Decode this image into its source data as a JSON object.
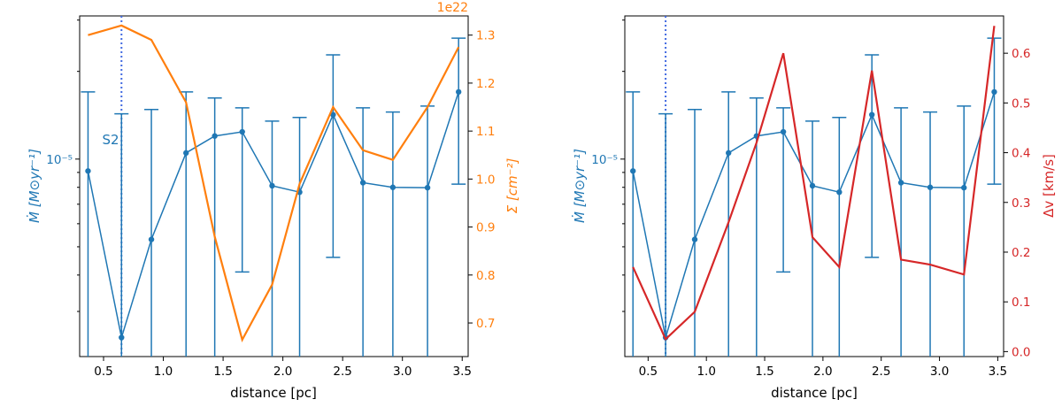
{
  "chart_data": [
    {
      "type": "line",
      "panel": "left",
      "xlabel": "distance [pc]",
      "ylabel_left": "Ṁ [M⊙yr⁻¹]",
      "ylabel_right": "Σ [cm⁻²]",
      "right_offset_text": "1e22",
      "annotation": "S2",
      "vline_x": 0.65,
      "xlim": [
        0.3,
        3.55
      ],
      "xticks": [
        0.5,
        1.0,
        1.5,
        2.0,
        2.5,
        3.0,
        3.5
      ],
      "xtick_labels": [
        "0.5",
        "1.0",
        "1.5",
        "2.0",
        "2.5",
        "3.0",
        "3.5"
      ],
      "left_axis": {
        "scale": "log",
        "ytick_label": "10⁻⁵",
        "ytick_value": 1e-05
      },
      "right_axis": {
        "ylim": [
          0.63,
          1.34
        ],
        "yticks": [
          0.7,
          0.8,
          0.9,
          1.0,
          1.1,
          1.2,
          1.3
        ],
        "ytick_labels": [
          "0.7",
          "0.8",
          "0.9",
          "1.0",
          "1.1",
          "1.2",
          "1.3"
        ]
      },
      "series": [
        {
          "name": "Mdot",
          "color": "#1f77b4",
          "axis": "left",
          "x": [
            0.37,
            0.65,
            0.9,
            1.19,
            1.43,
            1.66,
            1.91,
            2.14,
            2.42,
            2.67,
            2.92,
            3.21,
            3.47
          ],
          "y": [
            9.1e-06,
            2.44e-06,
            5.3e-06,
            1.05e-05,
            1.2e-05,
            1.24e-05,
            8.1e-06,
            7.7e-06,
            1.42e-05,
            8.3e-06,
            8e-06,
            7.98e-06,
            1.7e-05
          ],
          "yerr_low": [
            2e-06,
            2e-06,
            2e-06,
            2e-06,
            2e-06,
            4.1e-06,
            2e-06,
            2e-06,
            4.6e-06,
            2e-06,
            2e-06,
            2e-06,
            8.2e-06
          ],
          "yerr_high": [
            1.7e-05,
            1.43e-05,
            1.48e-05,
            1.7e-05,
            1.62e-05,
            1.5e-05,
            1.35e-05,
            1.39e-05,
            2.28e-05,
            1.5e-05,
            1.45e-05,
            1.52e-05,
            2.6e-05
          ]
        },
        {
          "name": "Sigma",
          "color": "#ff7f0e",
          "axis": "right",
          "x": [
            0.37,
            0.65,
            0.9,
            1.19,
            1.43,
            1.66,
            1.91,
            2.14,
            2.42,
            2.67,
            2.92,
            3.21,
            3.47
          ],
          "y": [
            1.3,
            1.32,
            1.29,
            1.16,
            0.88,
            0.665,
            0.78,
            0.99,
            1.15,
            1.06,
            1.04,
            1.15,
            1.275
          ]
        }
      ]
    },
    {
      "type": "line",
      "panel": "right",
      "xlabel": "distance [pc]",
      "ylabel_left": "Ṁ [M⊙yr⁻¹]",
      "ylabel_right": "Δv [km/s]",
      "vline_x": 0.65,
      "xlim": [
        0.3,
        3.55
      ],
      "xticks": [
        0.5,
        1.0,
        1.5,
        2.0,
        2.5,
        3.0,
        3.5
      ],
      "xtick_labels": [
        "0.5",
        "1.0",
        "1.5",
        "2.0",
        "2.5",
        "3.0",
        "3.5"
      ],
      "left_axis": {
        "scale": "log",
        "ytick_label": "10⁻⁵",
        "ytick_value": 1e-05
      },
      "right_axis": {
        "ylim": [
          -0.01,
          0.675
        ],
        "yticks": [
          0.0,
          0.1,
          0.2,
          0.3,
          0.4,
          0.5,
          0.6
        ],
        "ytick_labels": [
          "0.0",
          "0.1",
          "0.2",
          "0.3",
          "0.4",
          "0.5",
          "0.6"
        ]
      },
      "series": [
        {
          "name": "Mdot",
          "color": "#1f77b4",
          "axis": "left",
          "x": [
            0.37,
            0.65,
            0.9,
            1.19,
            1.43,
            1.66,
            1.91,
            2.14,
            2.42,
            2.67,
            2.92,
            3.21,
            3.47
          ],
          "y": [
            9.1e-06,
            2.44e-06,
            5.3e-06,
            1.05e-05,
            1.2e-05,
            1.24e-05,
            8.1e-06,
            7.7e-06,
            1.42e-05,
            8.3e-06,
            8e-06,
            7.98e-06,
            1.7e-05
          ],
          "yerr_low": [
            2e-06,
            2e-06,
            2e-06,
            2e-06,
            2e-06,
            4.1e-06,
            2e-06,
            2e-06,
            4.6e-06,
            2e-06,
            2e-06,
            2e-06,
            8.2e-06
          ],
          "yerr_high": [
            1.7e-05,
            1.43e-05,
            1.48e-05,
            1.7e-05,
            1.62e-05,
            1.5e-05,
            1.35e-05,
            1.39e-05,
            2.28e-05,
            1.5e-05,
            1.45e-05,
            1.52e-05,
            2.6e-05
          ]
        },
        {
          "name": "dv",
          "color": "#d62728",
          "axis": "right",
          "x": [
            0.37,
            0.65,
            0.9,
            1.19,
            1.43,
            1.66,
            1.91,
            2.14,
            2.42,
            2.67,
            2.92,
            3.21,
            3.47
          ],
          "y": [
            0.17,
            0.025,
            0.08,
            0.26,
            0.42,
            0.6,
            0.23,
            0.17,
            0.565,
            0.185,
            0.175,
            0.155,
            0.655
          ]
        }
      ]
    }
  ]
}
